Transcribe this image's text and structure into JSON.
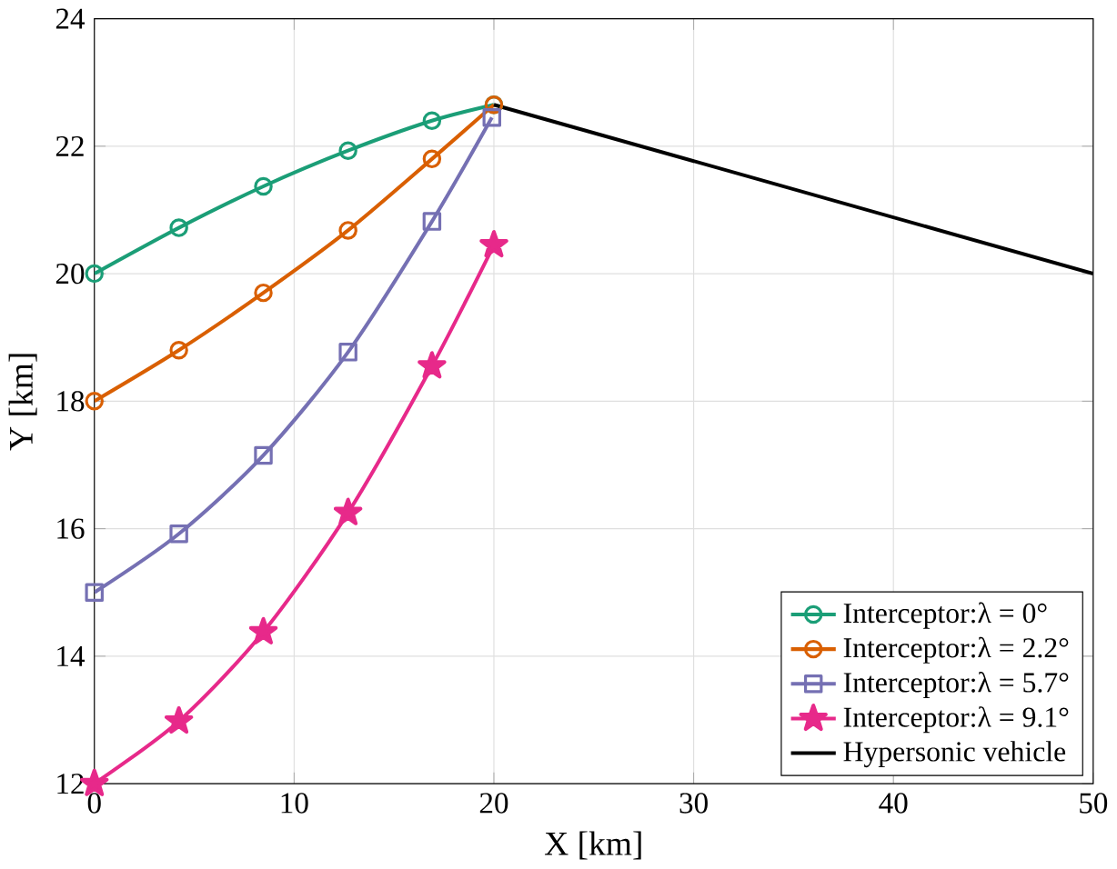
{
  "chart_data": {
    "type": "line",
    "xlabel": "X [km]",
    "ylabel": "Y [km]",
    "xlim": [
      0,
      50
    ],
    "ylim": [
      12,
      24
    ],
    "xticks": [
      0,
      10,
      20,
      30,
      40,
      50
    ],
    "yticks": [
      12,
      14,
      16,
      18,
      20,
      22,
      24
    ],
    "grid": true,
    "legend": "bottom right",
    "line_style": "solid",
    "series": [
      {
        "name": "Interceptor:λ = 0°",
        "color": "#1b9e77",
        "marker": "circle",
        "x": [
          0,
          4.23,
          8.46,
          12.7,
          16.9,
          20
        ],
        "values": [
          20.0,
          20.72,
          21.37,
          21.93,
          22.4,
          22.65
        ]
      },
      {
        "name": "Interceptor:λ = 2.2°",
        "color": "#d95f02",
        "marker": "circle",
        "x": [
          0,
          4.23,
          8.46,
          12.7,
          16.9,
          20
        ],
        "values": [
          18.0,
          18.8,
          19.7,
          20.68,
          21.8,
          22.65
        ]
      },
      {
        "name": "Interceptor:λ = 5.7°",
        "color": "#7570b3",
        "marker": "square",
        "x": [
          0,
          4.23,
          8.46,
          12.7,
          16.9,
          19.9
        ],
        "values": [
          15.0,
          15.92,
          17.15,
          18.77,
          20.82,
          22.45
        ]
      },
      {
        "name": "Interceptor:λ = 9.1°",
        "color": "#e7298a",
        "marker": "star",
        "x": [
          0,
          4.23,
          8.46,
          12.7,
          16.9,
          20
        ],
        "values": [
          12.0,
          12.98,
          14.38,
          16.25,
          18.55,
          20.45
        ]
      },
      {
        "name": "Hypersonic vehicle",
        "color": "#000000",
        "marker": "none",
        "x": [
          20,
          50
        ],
        "values": [
          22.65,
          20.0
        ]
      }
    ]
  }
}
